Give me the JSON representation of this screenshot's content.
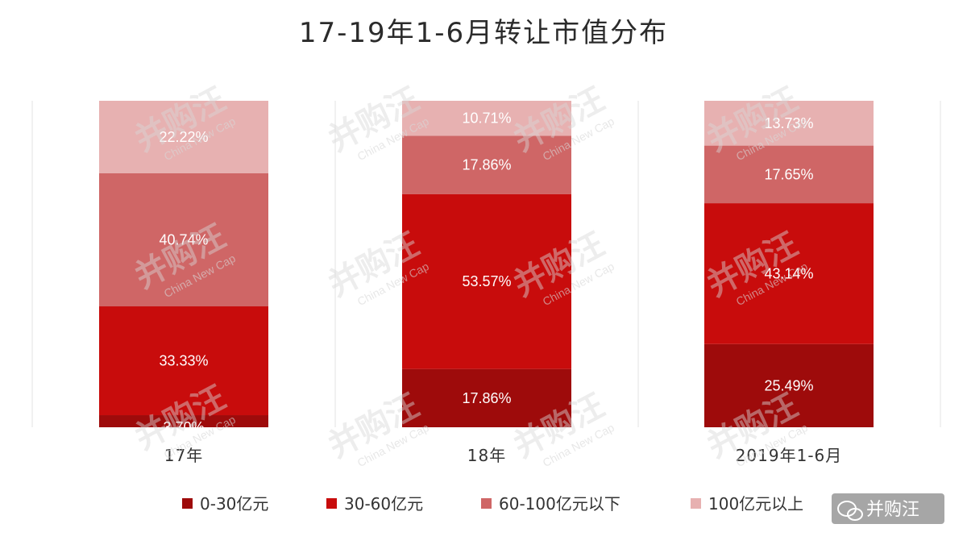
{
  "chart_data": {
    "type": "bar",
    "stacked": true,
    "title": "17-19年1-6月转让市值分布",
    "categories": [
      "17年",
      "18年",
      "2019年1-6月"
    ],
    "series": [
      {
        "name": "0-30亿元",
        "color": "#9e0b0b",
        "values": [
          3.7,
          17.86,
          25.49
        ],
        "labels": [
          "3.70%",
          "17.86%",
          "25.49%"
        ]
      },
      {
        "name": "30-60亿元",
        "color": "#c80c0c",
        "values": [
          33.33,
          53.57,
          43.14
        ],
        "labels": [
          "33.33%",
          "53.57%",
          "43.14%"
        ]
      },
      {
        "name": "60-100亿元以下",
        "color": "#cf6666",
        "values": [
          40.74,
          17.86,
          17.65
        ],
        "labels": [
          "40.74%",
          "17.86%",
          "17.65%"
        ]
      },
      {
        "name": "100亿元以上",
        "color": "#e7b1b1",
        "values": [
          22.22,
          10.71,
          13.73
        ],
        "labels": [
          "22.22%",
          "10.71%",
          "13.73%"
        ]
      }
    ],
    "ylim": [
      0,
      100
    ],
    "grid": false,
    "legend": "bottom"
  },
  "watermark": {
    "text": "并购汪",
    "subtext": "China New Cap"
  },
  "badge": {
    "text": "并购汪",
    "icon": "wechat-icon"
  }
}
